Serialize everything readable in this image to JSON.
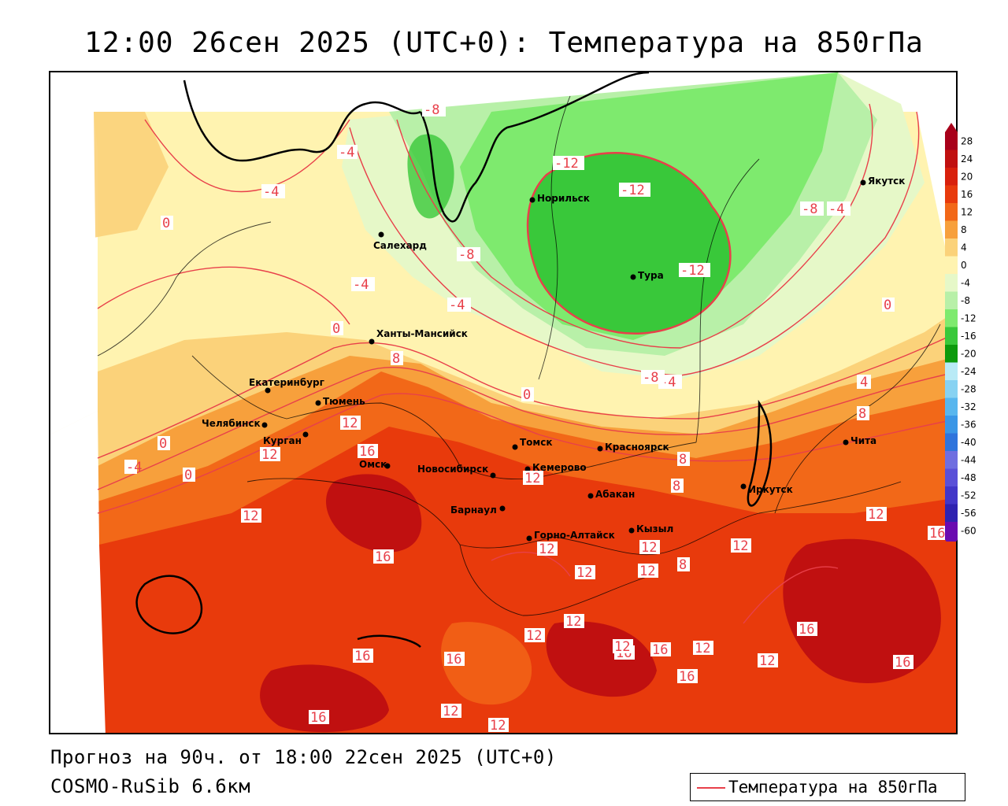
{
  "title": "12:00 26сен 2025 (UTC+0): Температура на 850гПа",
  "footer": {
    "forecast": "Прогноз на 90ч. от 18:00 22сен 2025 (UTC+0)",
    "model": "COSMO-RuSib 6.6км"
  },
  "legend": {
    "label": "Температура на 850гПа",
    "line_color": "#e8404a"
  },
  "cities": [
    {
      "name": "Якутск"
    },
    {
      "name": "Норильск"
    },
    {
      "name": "Салехард"
    },
    {
      "name": "Тура"
    },
    {
      "name": "Ханты-Мансийск"
    },
    {
      "name": "Екатеринбург"
    },
    {
      "name": "Тюмень"
    },
    {
      "name": "Челябинск"
    },
    {
      "name": "Курган"
    },
    {
      "name": "Омск"
    },
    {
      "name": "Новосибирск"
    },
    {
      "name": "Томск"
    },
    {
      "name": "Кемерово"
    },
    {
      "name": "Красноярск"
    },
    {
      "name": "Барнаул"
    },
    {
      "name": "Абакан"
    },
    {
      "name": "Горно-Алтайск"
    },
    {
      "name": "Кызыл"
    },
    {
      "name": "Иркутск"
    },
    {
      "name": "Чита"
    }
  ],
  "isotherm_labels": [
    "-8",
    "-4",
    "-12",
    "-12",
    "-4",
    "-8",
    "-4",
    "-8",
    "-4",
    "-4",
    "-12",
    "0",
    "0",
    "8",
    "0",
    "-4",
    "-8",
    "-4",
    "0",
    "4",
    "8",
    "12",
    "12",
    "0",
    "16",
    "8",
    "12",
    "0",
    "12",
    "16",
    "12",
    "8",
    "8",
    "12",
    "12",
    "12",
    "12",
    "12",
    "16",
    "12",
    "12",
    "12",
    "16",
    "16",
    "16",
    "16",
    "16",
    "12",
    "16",
    "16",
    "16",
    "12",
    "12",
    "12",
    "16",
    "16",
    "12",
    "16",
    "-8"
  ],
  "color_scale": {
    "ticks": [
      "28",
      "24",
      "20",
      "16",
      "12",
      "8",
      "4",
      "0",
      "-4",
      "-8",
      "-12",
      "-16",
      "-20",
      "-24",
      "-28",
      "-32",
      "-36",
      "-40",
      "-44",
      "-48",
      "-52",
      "-56",
      "-60"
    ],
    "colors": [
      "#a8001a",
      "#c01010",
      "#d8200c",
      "#e83a0c",
      "#f26818",
      "#f7a03c",
      "#fbd27a",
      "#fff3b0",
      "#e6f8c8",
      "#b8f0a8",
      "#7eea6e",
      "#39c83a",
      "#0c9a0c",
      "#b9eaf6",
      "#87d2f2",
      "#58b6ee",
      "#3a96e6",
      "#2f74dc",
      "#6f6ee0",
      "#5a50d8",
      "#4236c8",
      "#2f22b0",
      "#6a0ab0"
    ]
  }
}
